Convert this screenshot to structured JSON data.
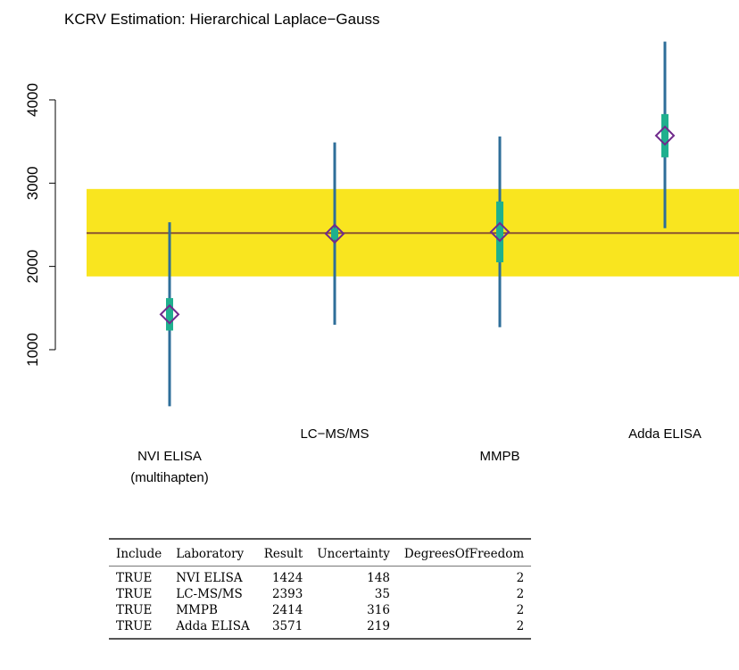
{
  "chart_data": {
    "type": "scatter",
    "title": "KCRV Estimation: Hierarchical Laplace−Gauss",
    "xlabel": "",
    "ylabel": "",
    "ylim": [
      0,
      4800
    ],
    "yticks": [
      "1000",
      "2000",
      "3000",
      "4000"
    ],
    "kcrv": {
      "value": 2400,
      "band_lower": 1880,
      "band_upper": 2930
    },
    "colors": {
      "band": "#f9e51f",
      "kcrv_line": "#8a5530",
      "wide_bar": "#2e6e99",
      "narrow_bar": "#1fb08e",
      "marker": "#702a8c"
    },
    "laboratories": [
      {
        "label_lines": [
          "NVI ELISA",
          "(multihapten)"
        ],
        "value": 1424,
        "narrow": [
          1230,
          1620
        ],
        "wide": [
          320,
          2530
        ]
      },
      {
        "label_lines": [
          "LC−MS/MS"
        ],
        "value": 2393,
        "narrow": [
          2320,
          2460
        ],
        "wide": [
          1300,
          3490
        ]
      },
      {
        "label_lines": [
          "MMPB"
        ],
        "value": 2414,
        "narrow": [
          2050,
          2780
        ],
        "wide": [
          1270,
          3560
        ]
      },
      {
        "label_lines": [
          "Adda ELISA"
        ],
        "value": 3571,
        "narrow": [
          3310,
          3830
        ],
        "wide": [
          2460,
          4700
        ]
      }
    ]
  },
  "table": {
    "headers": [
      "Include",
      "Laboratory",
      "Result",
      "Uncertainty",
      "DegreesOfFreedom"
    ],
    "rows": [
      [
        "TRUE",
        "NVI ELISA",
        "1424",
        "148",
        "2"
      ],
      [
        "TRUE",
        "LC-MS/MS",
        "2393",
        "35",
        "2"
      ],
      [
        "TRUE",
        "MMPB",
        "2414",
        "316",
        "2"
      ],
      [
        "TRUE",
        "Adda ELISA",
        "3571",
        "219",
        "2"
      ]
    ]
  }
}
